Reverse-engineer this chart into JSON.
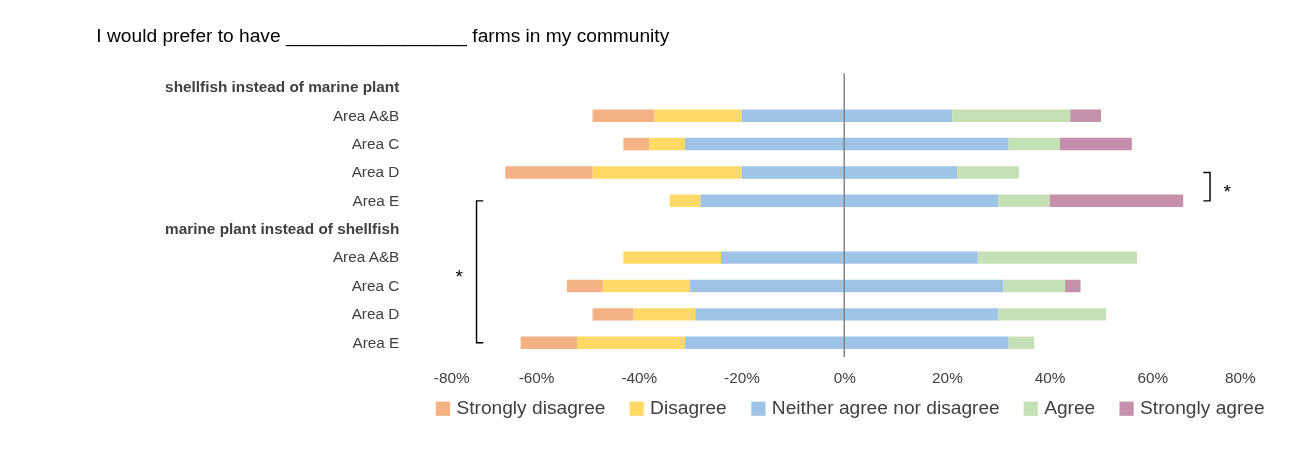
{
  "chart_data": {
    "type": "bar",
    "orientation": "horizontal",
    "title": "I would prefer to have _________________ farms in my community",
    "categories": [
      "shellfish instead of marine plant",
      "Area A&B",
      "Area C",
      "Area D",
      "Area E",
      "marine plant instead of shellfish",
      "Area A&B",
      "Area C",
      "Area D",
      "Area E"
    ],
    "series": [
      {
        "name": "Strongly disagree",
        "color": "#f4b183",
        "base": [
          null,
          -49,
          -43,
          -66,
          null,
          null,
          null,
          -54,
          -49,
          -63
        ],
        "values": [
          null,
          12,
          5,
          17,
          null,
          null,
          null,
          7,
          8,
          11
        ]
      },
      {
        "name": "Disagree",
        "color": "#ffd966",
        "base": [
          null,
          -37,
          -38,
          -49,
          -34,
          null,
          -43,
          -47,
          -41,
          -52
        ],
        "values": [
          null,
          17,
          7,
          29,
          6,
          null,
          19,
          17,
          12,
          21
        ]
      },
      {
        "name": "Neither agree nor disagree",
        "color": "#9dc3e6",
        "base": [
          null,
          -20,
          -31,
          -20,
          -28,
          null,
          -24,
          -30,
          -29,
          -31
        ],
        "values": [
          null,
          41,
          63,
          42,
          58,
          null,
          50,
          61,
          59,
          63
        ]
      },
      {
        "name": "Agree",
        "color": "#c5e0b4",
        "base": [
          null,
          21,
          32,
          22,
          30,
          null,
          26,
          31,
          30,
          32
        ],
        "values": [
          null,
          23,
          10,
          12,
          10,
          null,
          31,
          12,
          21,
          5
        ]
      },
      {
        "name": "Strongly agree",
        "color": "#c490aa",
        "base": [
          null,
          44,
          42,
          null,
          40,
          null,
          null,
          43,
          null,
          null
        ],
        "values": [
          null,
          6,
          14,
          null,
          26,
          null,
          null,
          3,
          null,
          null
        ]
      }
    ],
    "xlim": [
      -80,
      80
    ],
    "xticks": [
      {
        "value": -80,
        "label": "-80%"
      },
      {
        "value": -60,
        "label": "-60%"
      },
      {
        "value": -40,
        "label": "-40%"
      },
      {
        "value": -20,
        "label": "-20%"
      },
      {
        "value": 0,
        "label": "0%"
      },
      {
        "value": 20,
        "label": "20%"
      },
      {
        "value": 40,
        "label": "40%"
      },
      {
        "value": 60,
        "label": "60%"
      },
      {
        "value": 80,
        "label": "80%"
      }
    ],
    "ref_lines": [
      {
        "axis": "x",
        "value": 0,
        "color": "#808080"
      }
    ],
    "annotations": [
      "*",
      "*"
    ],
    "grid": false,
    "legend": "bottom"
  }
}
